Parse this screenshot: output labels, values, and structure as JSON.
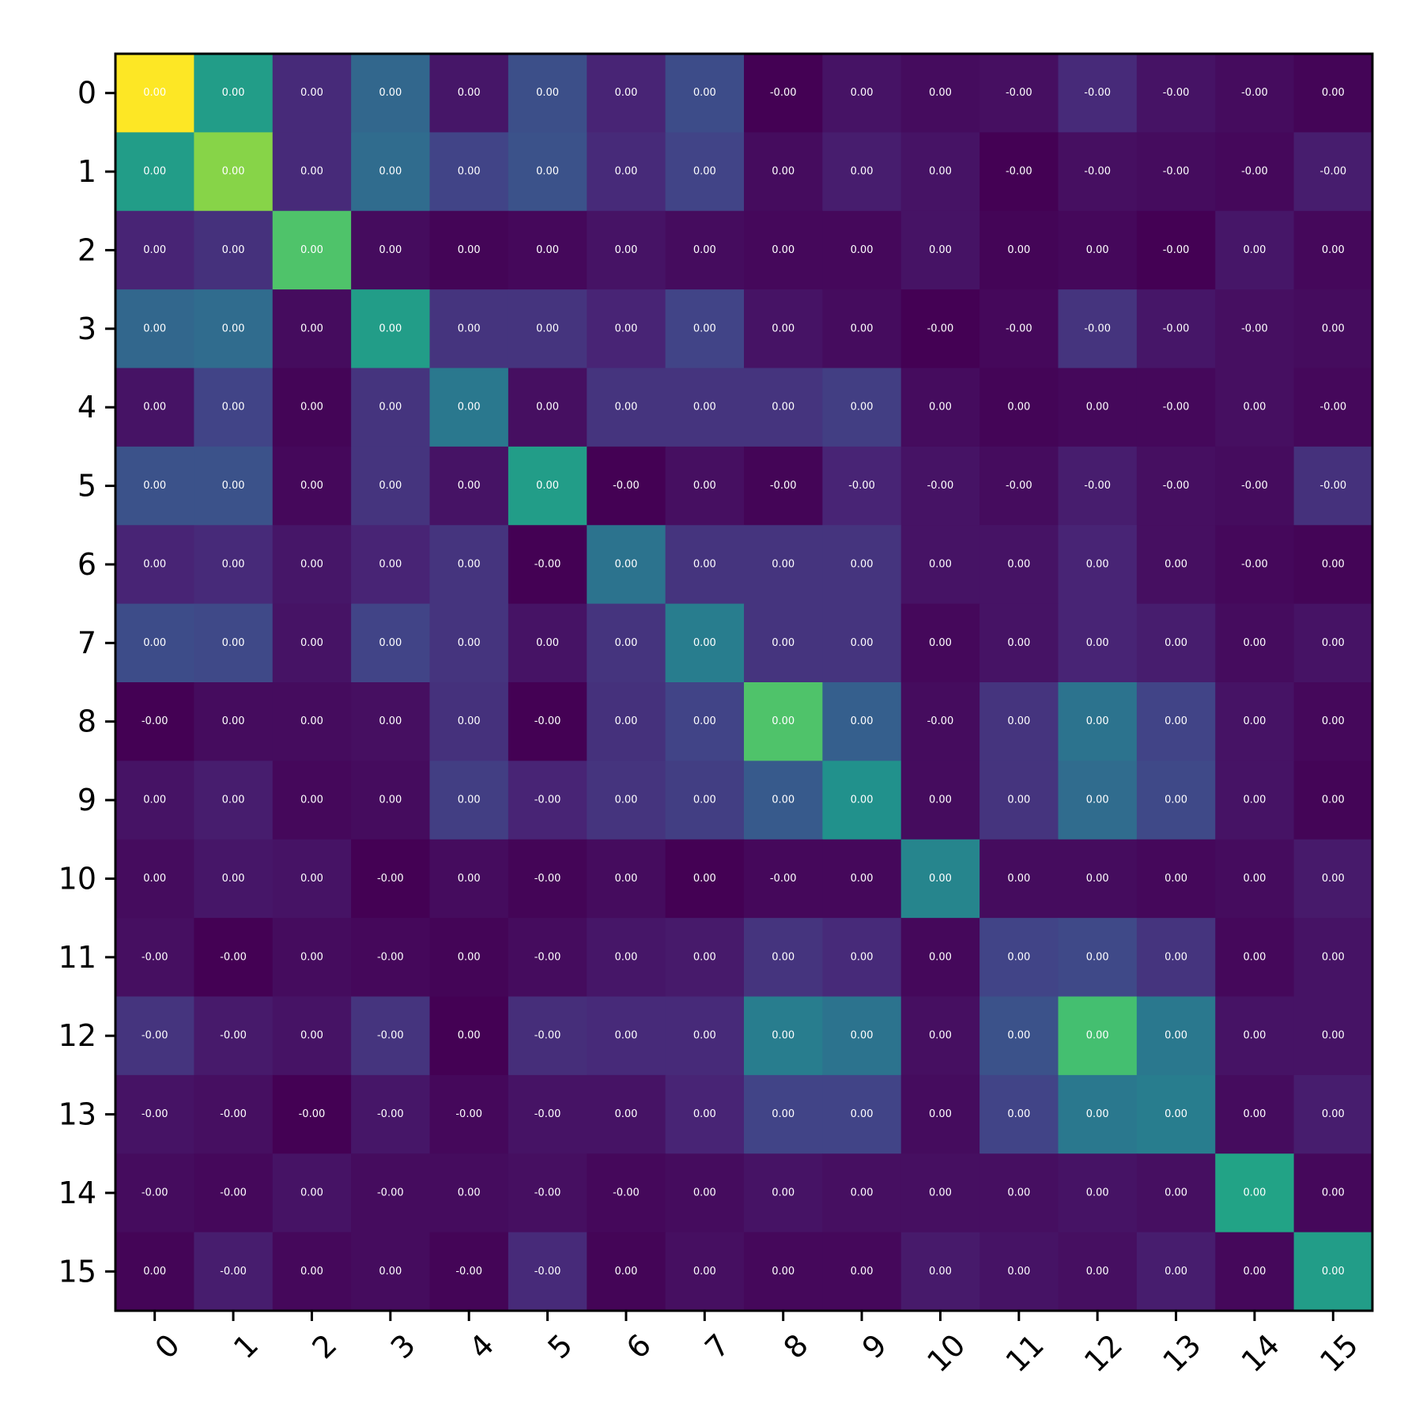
{
  "chart_data": {
    "type": "heatmap",
    "title": "",
    "xlabel": "",
    "ylabel": "",
    "x_tick_labels": [
      "0",
      "1",
      "2",
      "3",
      "4",
      "5",
      "6",
      "7",
      "8",
      "9",
      "10",
      "11",
      "12",
      "13",
      "14",
      "15"
    ],
    "y_tick_labels": [
      "0",
      "1",
      "2",
      "3",
      "4",
      "5",
      "6",
      "7",
      "8",
      "9",
      "10",
      "11",
      "12",
      "13",
      "14",
      "15"
    ],
    "colormap": "viridis",
    "color_range": [
      0.0,
      1.0
    ],
    "intensity": [
      [
        1.0,
        0.55,
        0.12,
        0.33,
        0.06,
        0.24,
        0.1,
        0.23,
        0.0,
        0.05,
        0.03,
        0.04,
        0.12,
        0.05,
        0.03,
        0.01
      ],
      [
        0.55,
        0.82,
        0.12,
        0.35,
        0.2,
        0.25,
        0.12,
        0.2,
        0.03,
        0.08,
        0.05,
        0.0,
        0.04,
        0.03,
        0.02,
        0.08
      ],
      [
        0.1,
        0.14,
        0.72,
        0.03,
        0.01,
        0.02,
        0.05,
        0.03,
        0.02,
        0.02,
        0.05,
        0.01,
        0.02,
        0.0,
        0.06,
        0.02
      ],
      [
        0.33,
        0.35,
        0.03,
        0.55,
        0.15,
        0.15,
        0.1,
        0.2,
        0.05,
        0.03,
        0.0,
        0.02,
        0.15,
        0.06,
        0.04,
        0.03
      ],
      [
        0.05,
        0.2,
        0.01,
        0.15,
        0.4,
        0.04,
        0.15,
        0.15,
        0.15,
        0.18,
        0.03,
        0.01,
        0.02,
        0.02,
        0.04,
        0.02
      ],
      [
        0.25,
        0.25,
        0.02,
        0.15,
        0.05,
        0.55,
        0.0,
        0.04,
        0.01,
        0.1,
        0.05,
        0.03,
        0.08,
        0.04,
        0.03,
        0.14
      ],
      [
        0.1,
        0.12,
        0.06,
        0.1,
        0.15,
        0.0,
        0.38,
        0.15,
        0.15,
        0.15,
        0.05,
        0.05,
        0.1,
        0.04,
        0.02,
        0.01
      ],
      [
        0.23,
        0.22,
        0.05,
        0.2,
        0.15,
        0.05,
        0.15,
        0.42,
        0.15,
        0.15,
        0.02,
        0.05,
        0.1,
        0.08,
        0.03,
        0.05
      ],
      [
        0.0,
        0.03,
        0.03,
        0.04,
        0.14,
        0.0,
        0.14,
        0.2,
        0.72,
        0.3,
        0.03,
        0.15,
        0.38,
        0.2,
        0.05,
        0.02
      ],
      [
        0.05,
        0.08,
        0.02,
        0.03,
        0.18,
        0.1,
        0.15,
        0.18,
        0.28,
        0.5,
        0.03,
        0.15,
        0.35,
        0.22,
        0.05,
        0.01
      ],
      [
        0.03,
        0.06,
        0.05,
        0.0,
        0.03,
        0.01,
        0.03,
        0.0,
        0.02,
        0.02,
        0.45,
        0.03,
        0.03,
        0.02,
        0.03,
        0.07
      ],
      [
        0.04,
        0.0,
        0.03,
        0.02,
        0.01,
        0.03,
        0.06,
        0.07,
        0.15,
        0.12,
        0.02,
        0.2,
        0.22,
        0.15,
        0.02,
        0.05
      ],
      [
        0.15,
        0.07,
        0.05,
        0.15,
        0.0,
        0.13,
        0.12,
        0.12,
        0.42,
        0.38,
        0.04,
        0.25,
        0.7,
        0.4,
        0.05,
        0.05
      ],
      [
        0.05,
        0.04,
        0.0,
        0.06,
        0.02,
        0.05,
        0.05,
        0.1,
        0.2,
        0.2,
        0.03,
        0.2,
        0.4,
        0.42,
        0.03,
        0.08
      ],
      [
        0.03,
        0.02,
        0.05,
        0.03,
        0.03,
        0.04,
        0.02,
        0.03,
        0.05,
        0.04,
        0.04,
        0.04,
        0.05,
        0.04,
        0.58,
        0.02
      ],
      [
        0.01,
        0.08,
        0.02,
        0.03,
        0.01,
        0.12,
        0.01,
        0.04,
        0.02,
        0.02,
        0.07,
        0.05,
        0.04,
        0.08,
        0.02,
        0.55
      ]
    ],
    "cell_labels": [
      [
        "0.00",
        "0.00",
        "0.00",
        "0.00",
        "0.00",
        "0.00",
        "0.00",
        "0.00",
        "-0.00",
        "0.00",
        "0.00",
        "-0.00",
        "-0.00",
        "-0.00",
        "-0.00",
        "0.00"
      ],
      [
        "0.00",
        "0.00",
        "0.00",
        "0.00",
        "0.00",
        "0.00",
        "0.00",
        "0.00",
        "0.00",
        "0.00",
        "0.00",
        "-0.00",
        "-0.00",
        "-0.00",
        "-0.00",
        "-0.00"
      ],
      [
        "0.00",
        "0.00",
        "0.00",
        "0.00",
        "0.00",
        "0.00",
        "0.00",
        "0.00",
        "0.00",
        "0.00",
        "0.00",
        "0.00",
        "0.00",
        "-0.00",
        "0.00",
        "0.00"
      ],
      [
        "0.00",
        "0.00",
        "0.00",
        "0.00",
        "0.00",
        "0.00",
        "0.00",
        "0.00",
        "0.00",
        "0.00",
        "-0.00",
        "-0.00",
        "-0.00",
        "-0.00",
        "-0.00",
        "0.00"
      ],
      [
        "0.00",
        "0.00",
        "0.00",
        "0.00",
        "0.00",
        "0.00",
        "0.00",
        "0.00",
        "0.00",
        "0.00",
        "0.00",
        "0.00",
        "0.00",
        "-0.00",
        "0.00",
        "-0.00"
      ],
      [
        "0.00",
        "0.00",
        "0.00",
        "0.00",
        "0.00",
        "0.00",
        "-0.00",
        "0.00",
        "-0.00",
        "-0.00",
        "-0.00",
        "-0.00",
        "-0.00",
        "-0.00",
        "-0.00",
        "-0.00"
      ],
      [
        "0.00",
        "0.00",
        "0.00",
        "0.00",
        "0.00",
        "-0.00",
        "0.00",
        "0.00",
        "0.00",
        "0.00",
        "0.00",
        "0.00",
        "0.00",
        "0.00",
        "-0.00",
        "0.00"
      ],
      [
        "0.00",
        "0.00",
        "0.00",
        "0.00",
        "0.00",
        "0.00",
        "0.00",
        "0.00",
        "0.00",
        "0.00",
        "0.00",
        "0.00",
        "0.00",
        "0.00",
        "0.00",
        "0.00"
      ],
      [
        "-0.00",
        "0.00",
        "0.00",
        "0.00",
        "0.00",
        "-0.00",
        "0.00",
        "0.00",
        "0.00",
        "0.00",
        "-0.00",
        "0.00",
        "0.00",
        "0.00",
        "0.00",
        "0.00"
      ],
      [
        "0.00",
        "0.00",
        "0.00",
        "0.00",
        "0.00",
        "-0.00",
        "0.00",
        "0.00",
        "0.00",
        "0.00",
        "0.00",
        "0.00",
        "0.00",
        "0.00",
        "0.00",
        "0.00"
      ],
      [
        "0.00",
        "0.00",
        "0.00",
        "-0.00",
        "0.00",
        "-0.00",
        "0.00",
        "0.00",
        "-0.00",
        "0.00",
        "0.00",
        "0.00",
        "0.00",
        "0.00",
        "0.00",
        "0.00"
      ],
      [
        "-0.00",
        "-0.00",
        "0.00",
        "-0.00",
        "0.00",
        "-0.00",
        "0.00",
        "0.00",
        "0.00",
        "0.00",
        "0.00",
        "0.00",
        "0.00",
        "0.00",
        "0.00",
        "0.00"
      ],
      [
        "-0.00",
        "-0.00",
        "0.00",
        "-0.00",
        "0.00",
        "-0.00",
        "0.00",
        "0.00",
        "0.00",
        "0.00",
        "0.00",
        "0.00",
        "0.00",
        "0.00",
        "0.00",
        "0.00"
      ],
      [
        "-0.00",
        "-0.00",
        "-0.00",
        "-0.00",
        "-0.00",
        "-0.00",
        "0.00",
        "0.00",
        "0.00",
        "0.00",
        "0.00",
        "0.00",
        "0.00",
        "0.00",
        "0.00",
        "0.00"
      ],
      [
        "-0.00",
        "-0.00",
        "0.00",
        "-0.00",
        "0.00",
        "-0.00",
        "-0.00",
        "0.00",
        "0.00",
        "0.00",
        "0.00",
        "0.00",
        "0.00",
        "0.00",
        "0.00",
        "0.00"
      ],
      [
        "0.00",
        "-0.00",
        "0.00",
        "0.00",
        "-0.00",
        "-0.00",
        "0.00",
        "0.00",
        "0.00",
        "0.00",
        "0.00",
        "0.00",
        "0.00",
        "0.00",
        "0.00",
        "0.00"
      ]
    ],
    "grid": false,
    "legend": "none"
  }
}
